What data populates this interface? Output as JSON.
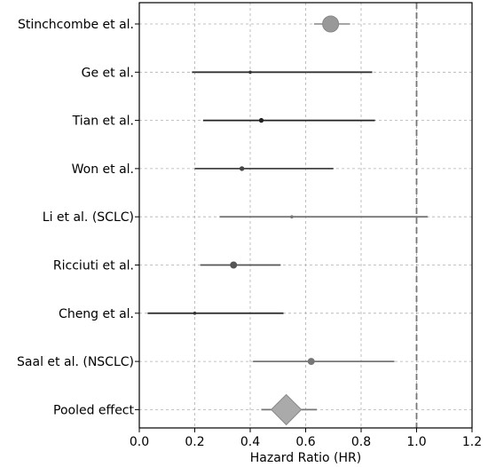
{
  "chart_data": {
    "type": "forest",
    "xlabel": "Hazard Ratio (HR)",
    "xlim": [
      0.0,
      1.2
    ],
    "xticks": [
      0.0,
      0.2,
      0.4,
      0.6,
      0.8,
      1.0,
      1.2
    ],
    "xtick_labels": [
      "0.0",
      "0.2",
      "0.4",
      "0.6",
      "0.8",
      "1.0",
      "1.2"
    ],
    "reference_line": 1.0,
    "grid": true,
    "studies": [
      {
        "label": "Stinchcombe et al.",
        "hr": 0.69,
        "ci": [
          0.63,
          0.76
        ],
        "weight": "large",
        "color": "#999999"
      },
      {
        "label": "Ge et al.",
        "hr": 0.4,
        "ci": [
          0.19,
          0.84
        ],
        "weight": "tiny",
        "color": "#333333"
      },
      {
        "label": "Tian et al.",
        "hr": 0.44,
        "ci": [
          0.23,
          0.85
        ],
        "weight": "small",
        "color": "#222222"
      },
      {
        "label": "Won et al.",
        "hr": 0.37,
        "ci": [
          0.2,
          0.7
        ],
        "weight": "small",
        "color": "#444444"
      },
      {
        "label": "Li et al. (SCLC)",
        "hr": 0.55,
        "ci": [
          0.29,
          1.04
        ],
        "weight": "tiny",
        "color": "#777777"
      },
      {
        "label": "Ricciuti et al.",
        "hr": 0.34,
        "ci": [
          0.22,
          0.51
        ],
        "weight": "medium",
        "color": "#555555"
      },
      {
        "label": "Cheng et al.",
        "hr": 0.2,
        "ci": [
          0.03,
          0.52
        ],
        "weight": "tiny",
        "color": "#333333"
      },
      {
        "label": "Saal et al. (NSCLC)",
        "hr": 0.62,
        "ci": [
          0.41,
          0.92
        ],
        "weight": "medium",
        "color": "#777777"
      }
    ],
    "pooled": {
      "label": "Pooled effect",
      "hr": 0.53,
      "ci": [
        0.44,
        0.64
      ],
      "color": "#aaaaaa"
    }
  }
}
